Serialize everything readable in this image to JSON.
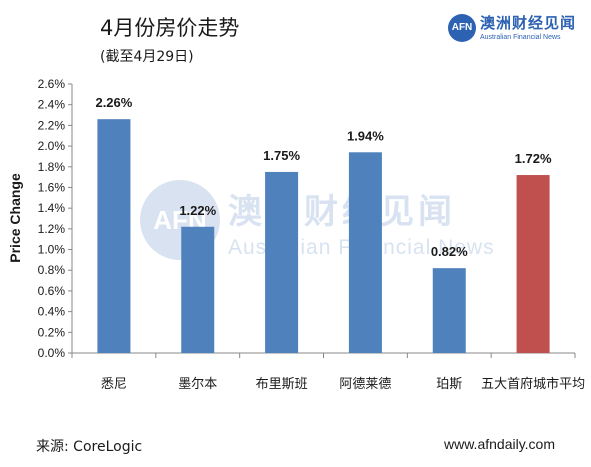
{
  "header": {
    "title": "4月份房价走势",
    "subtitle": "(截至4月29日)"
  },
  "brand": {
    "logo_text": "AFN",
    "name_cn": "澳洲财经见闻",
    "name_en": "Australian Financial News"
  },
  "watermark": {
    "logo_text": "AFN",
    "name_cn": "澳洲财经见闻",
    "name_en": "Australian Financial News"
  },
  "footer": {
    "source": "来源: CoreLogic",
    "website": "www.afndaily.com"
  },
  "colors": {
    "bar_default": "#4f81bd",
    "bar_highlight": "#c0504d",
    "axis": "#888888",
    "brand": "#2d62b3"
  },
  "chart_data": {
    "type": "bar",
    "ylabel": "Price Change",
    "xlabel": "",
    "categories": [
      "悉尼",
      "墨尔本",
      "布里斯班",
      "阿德莱德",
      "珀斯",
      "五大首府城市平均"
    ],
    "values": [
      2.26,
      1.22,
      1.75,
      1.94,
      0.82,
      1.72
    ],
    "data_labels": [
      "2.26%",
      "1.22%",
      "1.75%",
      "1.94%",
      "0.82%",
      "1.72%"
    ],
    "highlight_index": 5,
    "ylim": [
      0,
      2.6
    ],
    "yticks": [
      "0.0%",
      "0.2%",
      "0.4%",
      "0.6%",
      "0.8%",
      "1.0%",
      "1.2%",
      "1.4%",
      "1.6%",
      "1.8%",
      "2.0%",
      "2.2%",
      "2.4%",
      "2.6%"
    ],
    "grid": false,
    "legend": "none"
  }
}
